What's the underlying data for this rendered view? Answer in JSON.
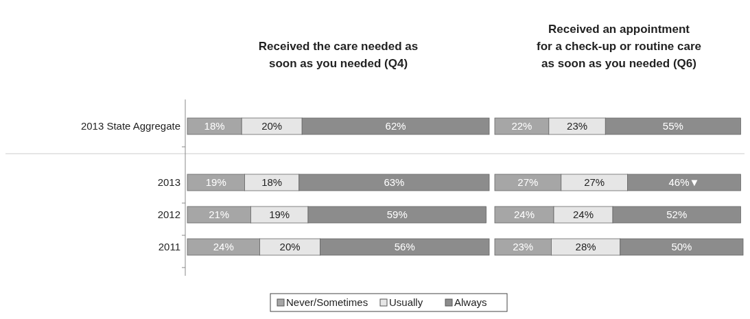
{
  "chart_data": [
    {
      "type": "bar",
      "orientation": "horizontal",
      "stacked": true,
      "title": "Received the care needed as\nsoon as you needed (Q4)",
      "categories": [
        "2013 State Aggregate",
        "2013",
        "2012",
        "2011"
      ],
      "legend": "bottom",
      "series": [
        {
          "name": "Never/Sometimes",
          "color": "#a6a6a6",
          "values": [
            18,
            19,
            21,
            24
          ],
          "value_labels": [
            "18%",
            "19%",
            "21%",
            "24%"
          ]
        },
        {
          "name": "Usually",
          "color": "#e6e6e6",
          "values": [
            20,
            18,
            19,
            20
          ],
          "value_labels": [
            "20%",
            "18%",
            "19%",
            "20%"
          ]
        },
        {
          "name": "Always",
          "color": "#8c8c8c",
          "values": [
            62,
            63,
            59,
            56
          ],
          "value_labels": [
            "62%",
            "63%",
            "59%",
            "56%"
          ]
        }
      ]
    },
    {
      "type": "bar",
      "orientation": "horizontal",
      "stacked": true,
      "title": "Received an appointment\nfor a check-up or routine care\nas soon as you needed (Q6)",
      "categories": [
        null,
        null,
        null,
        null
      ],
      "series": [
        {
          "color": "#a6a6a6",
          "values": [
            22,
            27,
            24,
            23
          ],
          "value_labels": [
            "22%",
            "27%",
            "24%",
            "23%"
          ]
        },
        {
          "color": "#e6e6e6",
          "values": [
            23,
            27,
            24,
            28
          ],
          "value_labels": [
            "23%",
            "27%",
            "24%",
            "28%"
          ]
        },
        {
          "color": "#8c8c8c",
          "values": [
            55,
            46,
            52,
            50
          ],
          "value_labels": [
            "55%",
            "46%▼",
            "52%",
            "50%"
          ]
        }
      ]
    }
  ]
}
